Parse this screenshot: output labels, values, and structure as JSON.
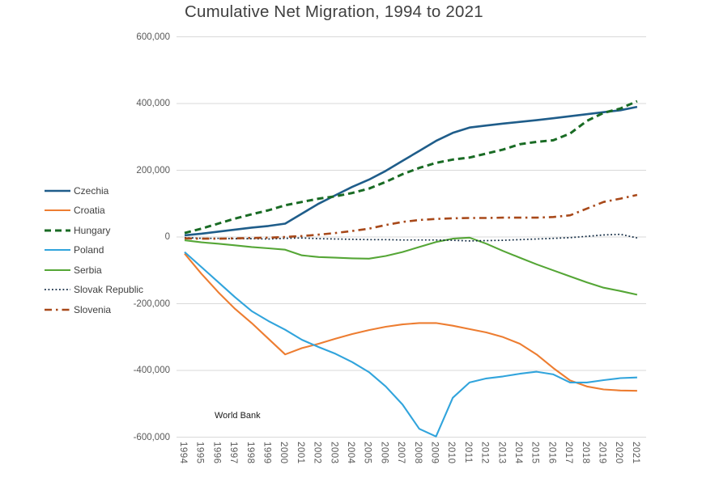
{
  "title": "Cumulative Net Migration, 1994 to 2021",
  "source_note": "World Bank",
  "palette": {
    "background": "#ffffff",
    "gridline": "#d9d9d9",
    "title_text": "#404040",
    "axis_text": "#595959",
    "legend_text": "#404040"
  },
  "chart_data": {
    "type": "line",
    "title": "Cumulative Net Migration, 1994 to 2021",
    "xlabel": "",
    "ylabel": "",
    "grid": true,
    "legend_position": "left",
    "ylim": [
      -600000,
      600000
    ],
    "y_axis": {
      "ticks": [
        {
          "value": 600000,
          "label": "600,000"
        },
        {
          "value": 400000,
          "label": "400,000"
        },
        {
          "value": 200000,
          "label": "200,000"
        },
        {
          "value": 0,
          "label": "0"
        },
        {
          "value": -200000,
          "label": "-200,000"
        },
        {
          "value": -400000,
          "label": "-400,000"
        },
        {
          "value": -600000,
          "label": "-600,000"
        }
      ]
    },
    "x": [
      1994,
      1995,
      1996,
      1997,
      1998,
      1999,
      2000,
      2001,
      2002,
      2003,
      2004,
      2005,
      2006,
      2007,
      2008,
      2009,
      2010,
      2011,
      2012,
      2013,
      2014,
      2015,
      2016,
      2017,
      2018,
      2019,
      2020,
      2021
    ],
    "series": [
      {
        "name": "Czechia",
        "color": "#1F5D8A",
        "line_style": "solid",
        "width": 2.6,
        "values": [
          5000,
          10000,
          16000,
          22000,
          28000,
          33000,
          40000,
          70000,
          100000,
          125000,
          150000,
          172000,
          198000,
          228000,
          258000,
          288000,
          312000,
          328000,
          334000,
          340000,
          345000,
          350000,
          356000,
          362000,
          368000,
          374000,
          380000,
          390000
        ]
      },
      {
        "name": "Croatia",
        "color": "#ED7D31",
        "line_style": "solid",
        "width": 2.1,
        "values": [
          -50000,
          -110000,
          -165000,
          -215000,
          -258000,
          -305000,
          -352000,
          -333000,
          -320000,
          -305000,
          -291000,
          -279000,
          -269000,
          -262000,
          -258000,
          -258000,
          -266000,
          -276000,
          -286000,
          -300000,
          -320000,
          -352000,
          -393000,
          -430000,
          -448000,
          -457000,
          -460000,
          -461000
        ]
      },
      {
        "name": "Hungary",
        "color": "#196B24",
        "line_style": "dashed",
        "width": 3,
        "values": [
          12000,
          25000,
          40000,
          55000,
          68000,
          80000,
          95000,
          105000,
          115000,
          122000,
          132000,
          145000,
          165000,
          188000,
          207000,
          222000,
          232000,
          238000,
          250000,
          262000,
          278000,
          285000,
          290000,
          310000,
          348000,
          372000,
          385000,
          407000
        ]
      },
      {
        "name": "Poland",
        "color": "#31A4DC",
        "line_style": "solid",
        "width": 2.1,
        "values": [
          -45000,
          -90000,
          -135000,
          -180000,
          -222000,
          -252000,
          -278000,
          -308000,
          -330000,
          -350000,
          -375000,
          -405000,
          -448000,
          -502000,
          -575000,
          -598000,
          -482000,
          -436000,
          -424000,
          -418000,
          -410000,
          -404000,
          -412000,
          -436000,
          -436000,
          -429000,
          -423000,
          -421000
        ]
      },
      {
        "name": "Serbia",
        "color": "#55A636",
        "line_style": "solid",
        "width": 2.1,
        "values": [
          -10000,
          -16000,
          -20000,
          -25000,
          -30000,
          -34000,
          -38000,
          -55000,
          -60000,
          -62000,
          -64000,
          -65000,
          -57000,
          -45000,
          -30000,
          -15000,
          -5000,
          -2000,
          -20000,
          -42000,
          -62000,
          -82000,
          -100000,
          -118000,
          -136000,
          -152000,
          -162000,
          -173000
        ]
      },
      {
        "name": "Slovak Republic",
        "color": "#0E2841",
        "line_style": "dotted",
        "width": 1.7,
        "values": [
          -2000,
          -4000,
          -4000,
          -5000,
          -5000,
          -6000,
          -4000,
          -3000,
          -5000,
          -6000,
          -7000,
          -8000,
          -8000,
          -9000,
          -9000,
          -9000,
          -10000,
          -12000,
          -11000,
          -10000,
          -8000,
          -6000,
          -4000,
          -2000,
          2000,
          6000,
          8000,
          -3000
        ]
      },
      {
        "name": "Slovenia",
        "color": "#A8491A",
        "line_style": "dash_dot",
        "width": 2.6,
        "values": [
          -4000,
          -5000,
          -5000,
          -4000,
          -3000,
          -2000,
          0,
          3000,
          7000,
          12000,
          18000,
          25000,
          36000,
          45000,
          51000,
          54000,
          56000,
          57000,
          57000,
          58000,
          58000,
          58000,
          60000,
          65000,
          85000,
          105000,
          115000,
          126000
        ]
      }
    ]
  }
}
